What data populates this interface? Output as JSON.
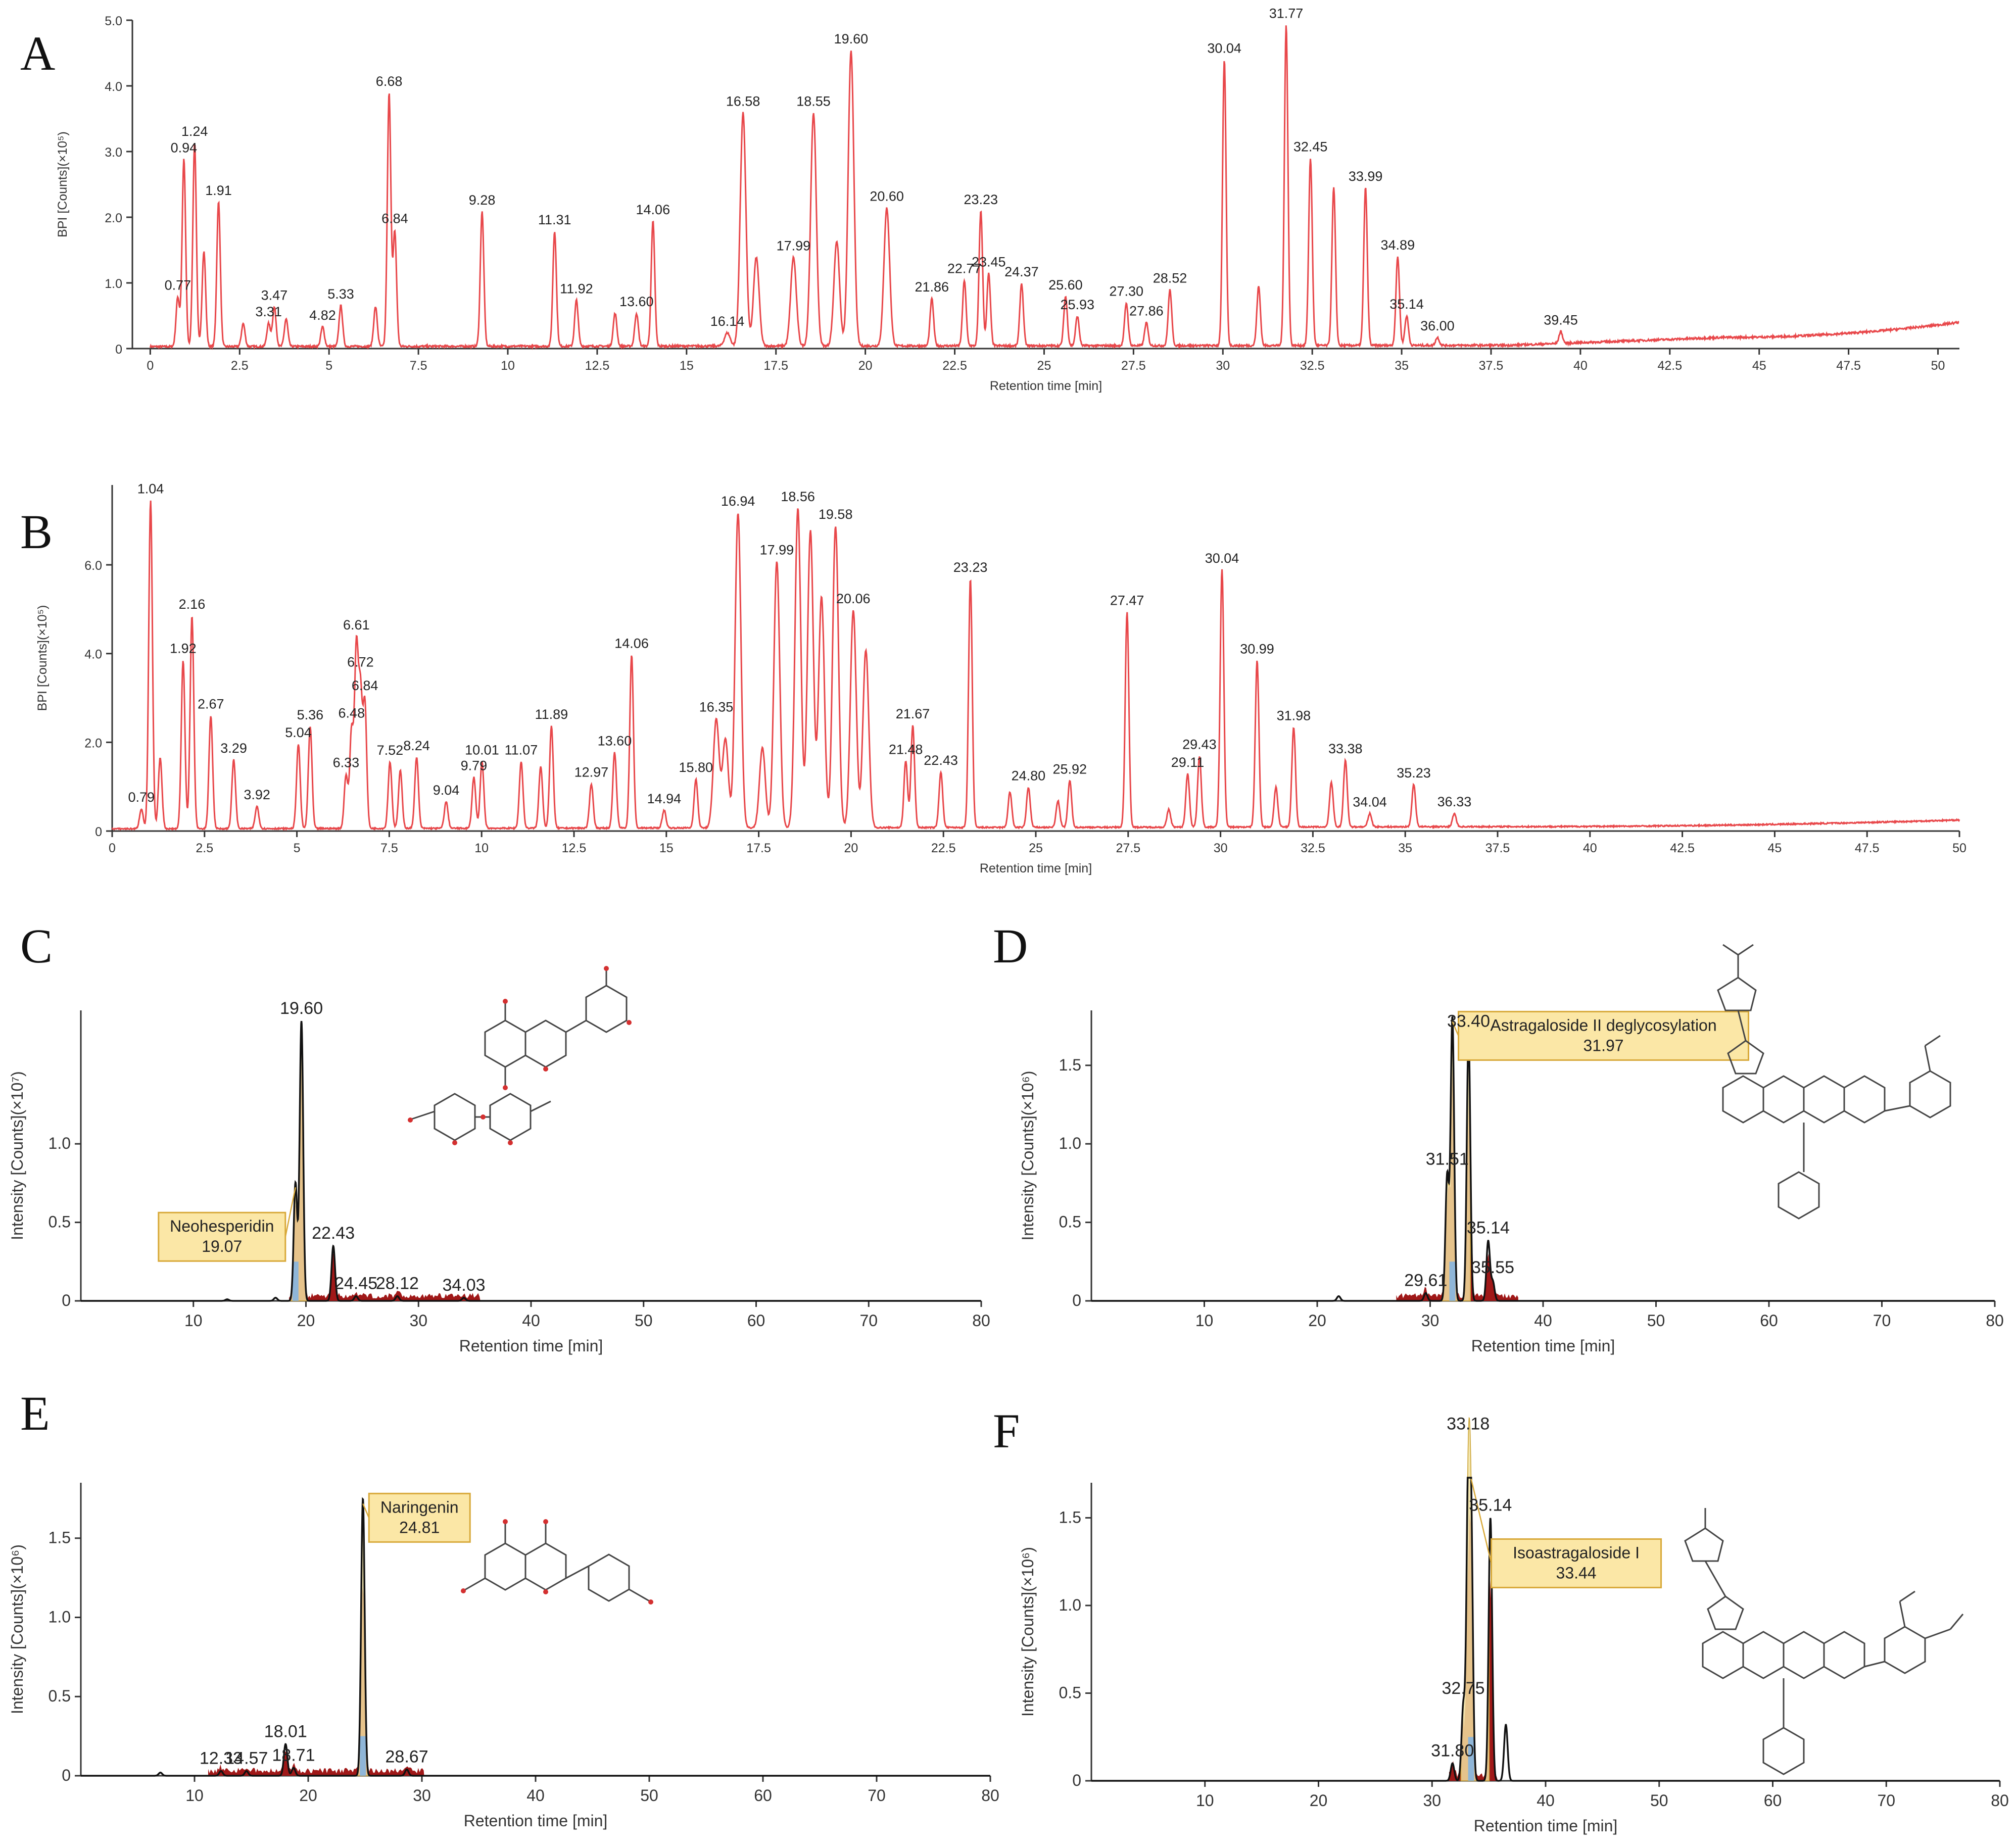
{
  "colors": {
    "trace_red": "#e8474a",
    "trace_black": "#111111",
    "fill_dark_red": "#a01818",
    "fill_yellow": "#f2e2a0",
    "fill_blue": "#8fb6d8",
    "callout_bg": "#fbe7a6",
    "callout_border": "#d8a93a",
    "axis": "#333333",
    "structure": "#444444",
    "oxygen": "#d43030",
    "nitrogen_blue": "#3a7fc0"
  },
  "chart_data": [
    {
      "panel": "A",
      "type": "line",
      "xlabel": "Retention time [min]",
      "ylabel": "BPI [Counts](×10⁵)",
      "xlim": [
        -0.5,
        50.6
      ],
      "ylim": [
        0,
        5.0
      ],
      "xticks": [
        0,
        2.5,
        5,
        7.5,
        10,
        12.5,
        15,
        17.5,
        20,
        22.5,
        25,
        27.5,
        30,
        32.5,
        35,
        37.5,
        40,
        42.5,
        45,
        47.5,
        50
      ],
      "xtick_labels": [
        "0",
        "2.5",
        "5",
        "7.5",
        "10",
        "12.5",
        "15",
        "17.5",
        "20",
        "22.5",
        "25",
        "27.5",
        "30",
        "32.5",
        "35",
        "37.5",
        "40",
        "42.5",
        "45",
        "47.5",
        "50"
      ],
      "yticks": [
        0,
        1.0,
        2.0,
        3.0,
        4.0,
        5.0
      ],
      "ytick_labels": [
        "0",
        "1.0",
        "2.0",
        "3.0",
        "4.0",
        "5.0"
      ],
      "baseline": [
        [
          0,
          0.03
        ],
        [
          38,
          0.05
        ],
        [
          44,
          0.17
        ],
        [
          50.6,
          0.4
        ]
      ],
      "peaks": [
        {
          "rt": 0.77,
          "h": 0.75,
          "label": "0.77"
        },
        {
          "rt": 0.94,
          "h": 2.85,
          "label": "0.94"
        },
        {
          "rt": 1.24,
          "h": 3.1,
          "label": "1.24"
        },
        {
          "rt": 1.5,
          "h": 1.45
        },
        {
          "rt": 1.91,
          "h": 2.2,
          "label": "1.91"
        },
        {
          "rt": 2.6,
          "h": 0.35
        },
        {
          "rt": 3.31,
          "h": 0.35,
          "label": "3.31"
        },
        {
          "rt": 3.47,
          "h": 0.6,
          "label": "3.47"
        },
        {
          "rt": 3.8,
          "h": 0.42
        },
        {
          "rt": 4.82,
          "h": 0.3,
          "label": "4.82"
        },
        {
          "rt": 5.33,
          "h": 0.62,
          "label": "5.33"
        },
        {
          "rt": 6.3,
          "h": 0.6
        },
        {
          "rt": 6.68,
          "h": 3.85,
          "label": "6.68"
        },
        {
          "rt": 6.84,
          "h": 1.75,
          "label": "6.84"
        },
        {
          "rt": 9.28,
          "h": 2.05,
          "label": "9.28"
        },
        {
          "rt": 11.31,
          "h": 1.75,
          "label": "11.31"
        },
        {
          "rt": 11.92,
          "h": 0.7,
          "label": "11.92"
        },
        {
          "rt": 13.0,
          "h": 0.5
        },
        {
          "rt": 13.6,
          "h": 0.5,
          "label": "13.60"
        },
        {
          "rt": 14.06,
          "h": 1.9,
          "label": "14.06"
        },
        {
          "rt": 16.14,
          "h": 0.2,
          "label": "16.14"
        },
        {
          "rt": 16.58,
          "h": 3.55,
          "label": "16.58"
        },
        {
          "rt": 16.95,
          "h": 1.35
        },
        {
          "rt": 17.99,
          "h": 1.35,
          "label": "17.99"
        },
        {
          "rt": 18.55,
          "h": 3.55,
          "label": "18.55"
        },
        {
          "rt": 19.2,
          "h": 1.6
        },
        {
          "rt": 19.6,
          "h": 4.5,
          "label": "19.60"
        },
        {
          "rt": 20.6,
          "h": 2.1,
          "label": "20.60"
        },
        {
          "rt": 21.86,
          "h": 0.72,
          "label": "21.86"
        },
        {
          "rt": 22.77,
          "h": 1.0,
          "label": "22.77"
        },
        {
          "rt": 23.23,
          "h": 2.05,
          "label": "23.23"
        },
        {
          "rt": 23.45,
          "h": 1.1,
          "label": "23.45"
        },
        {
          "rt": 24.37,
          "h": 0.95,
          "label": "24.37"
        },
        {
          "rt": 25.6,
          "h": 0.75,
          "label": "25.60"
        },
        {
          "rt": 25.93,
          "h": 0.45,
          "label": "25.93"
        },
        {
          "rt": 27.3,
          "h": 0.65,
          "label": "27.30"
        },
        {
          "rt": 27.86,
          "h": 0.35,
          "label": "27.86"
        },
        {
          "rt": 28.52,
          "h": 0.85,
          "label": "28.52"
        },
        {
          "rt": 30.04,
          "h": 4.35,
          "label": "30.04"
        },
        {
          "rt": 31.0,
          "h": 0.9
        },
        {
          "rt": 31.77,
          "h": 4.88,
          "label": "31.77"
        },
        {
          "rt": 32.45,
          "h": 2.85,
          "label": "32.45"
        },
        {
          "rt": 33.1,
          "h": 2.4
        },
        {
          "rt": 33.99,
          "h": 2.4,
          "label": "33.99"
        },
        {
          "rt": 34.89,
          "h": 1.35,
          "label": "34.89"
        },
        {
          "rt": 35.14,
          "h": 0.45,
          "label": "35.14"
        },
        {
          "rt": 36.0,
          "h": 0.12,
          "label": "36.00"
        },
        {
          "rt": 39.45,
          "h": 0.18,
          "label": "39.45"
        }
      ]
    },
    {
      "panel": "B",
      "type": "line",
      "xlabel": "Retention time [min]",
      "ylabel": "BPI [Counts](×10⁵)",
      "xlim": [
        0,
        50
      ],
      "ylim": [
        0,
        7.8
      ],
      "xticks": [
        0,
        2.5,
        5,
        7.5,
        10,
        12.5,
        15,
        17.5,
        20,
        22.5,
        25,
        27.5,
        30,
        32.5,
        35,
        37.5,
        40,
        42.5,
        45,
        47.5,
        50
      ],
      "xtick_labels": [
        "0",
        "2.5",
        "5",
        "7.5",
        "10",
        "12.5",
        "15",
        "17.5",
        "20",
        "22.5",
        "25",
        "27.5",
        "30",
        "32.5",
        "35",
        "37.5",
        "40",
        "42.5",
        "45",
        "47.5",
        "50"
      ],
      "yticks": [
        0,
        2.0,
        4.0,
        6.0
      ],
      "ytick_labels": [
        "0",
        "2.0",
        "4.0",
        "6.0"
      ],
      "baseline": [
        [
          0,
          0.05
        ],
        [
          38,
          0.1
        ],
        [
          50,
          0.25
        ]
      ],
      "peaks": [
        {
          "rt": 0.79,
          "h": 0.45,
          "label": "0.79"
        },
        {
          "rt": 1.04,
          "h": 7.4,
          "label": "1.04"
        },
        {
          "rt": 1.3,
          "h": 1.6
        },
        {
          "rt": 1.92,
          "h": 3.8,
          "label": "1.92"
        },
        {
          "rt": 2.16,
          "h": 4.8,
          "label": "2.16"
        },
        {
          "rt": 2.67,
          "h": 2.55,
          "label": "2.67"
        },
        {
          "rt": 3.29,
          "h": 1.55,
          "label": "3.29"
        },
        {
          "rt": 3.92,
          "h": 0.5,
          "label": "3.92"
        },
        {
          "rt": 5.04,
          "h": 1.9,
          "label": "5.04"
        },
        {
          "rt": 5.36,
          "h": 2.3,
          "label": "5.36"
        },
        {
          "rt": 6.33,
          "h": 1.2,
          "label": "6.33"
        },
        {
          "rt": 6.48,
          "h": 2.2,
          "label": "6.48"
        },
        {
          "rt": 6.61,
          "h": 4.0,
          "label": "6.61"
        },
        {
          "rt": 6.72,
          "h": 3.0,
          "label": "6.72"
        },
        {
          "rt": 6.84,
          "h": 2.8,
          "label": "6.84"
        },
        {
          "rt": 7.52,
          "h": 1.5,
          "label": "7.52"
        },
        {
          "rt": 7.8,
          "h": 1.3
        },
        {
          "rt": 8.24,
          "h": 1.6,
          "label": "8.24"
        },
        {
          "rt": 9.04,
          "h": 0.6,
          "label": "9.04"
        },
        {
          "rt": 9.79,
          "h": 1.15,
          "label": "9.79"
        },
        {
          "rt": 10.01,
          "h": 1.5,
          "label": "10.01"
        },
        {
          "rt": 11.07,
          "h": 1.5,
          "label": "11.07"
        },
        {
          "rt": 11.6,
          "h": 1.4
        },
        {
          "rt": 11.89,
          "h": 2.3,
          "label": "11.89"
        },
        {
          "rt": 12.97,
          "h": 1.0,
          "label": "12.97"
        },
        {
          "rt": 13.6,
          "h": 1.7,
          "label": "13.60"
        },
        {
          "rt": 14.06,
          "h": 3.9,
          "label": "14.06"
        },
        {
          "rt": 14.94,
          "h": 0.4,
          "label": "14.94"
        },
        {
          "rt": 15.8,
          "h": 1.1,
          "label": "15.80"
        },
        {
          "rt": 16.35,
          "h": 2.45,
          "label": "16.35"
        },
        {
          "rt": 16.6,
          "h": 2.0
        },
        {
          "rt": 16.94,
          "h": 7.1,
          "label": "16.94"
        },
        {
          "rt": 17.6,
          "h": 1.8
        },
        {
          "rt": 17.99,
          "h": 6.0,
          "label": "17.99"
        },
        {
          "rt": 18.56,
          "h": 7.2,
          "label": "18.56"
        },
        {
          "rt": 18.9,
          "h": 6.7
        },
        {
          "rt": 19.2,
          "h": 5.2
        },
        {
          "rt": 19.58,
          "h": 6.8,
          "label": "19.58"
        },
        {
          "rt": 20.06,
          "h": 4.9,
          "label": "20.06"
        },
        {
          "rt": 20.4,
          "h": 4.0
        },
        {
          "rt": 21.48,
          "h": 1.5,
          "label": "21.48"
        },
        {
          "rt": 21.67,
          "h": 2.3,
          "label": "21.67"
        },
        {
          "rt": 22.43,
          "h": 1.25,
          "label": "22.43"
        },
        {
          "rt": 23.23,
          "h": 5.6,
          "label": "23.23"
        },
        {
          "rt": 24.3,
          "h": 0.8
        },
        {
          "rt": 24.8,
          "h": 0.9,
          "label": "24.80"
        },
        {
          "rt": 25.6,
          "h": 0.6
        },
        {
          "rt": 25.92,
          "h": 1.05,
          "label": "25.92"
        },
        {
          "rt": 27.47,
          "h": 4.85,
          "label": "27.47"
        },
        {
          "rt": 28.6,
          "h": 0.4
        },
        {
          "rt": 29.11,
          "h": 1.2,
          "label": "29.11"
        },
        {
          "rt": 29.43,
          "h": 1.6,
          "label": "29.43"
        },
        {
          "rt": 30.04,
          "h": 5.8,
          "label": "30.04"
        },
        {
          "rt": 30.99,
          "h": 3.75,
          "label": "30.99"
        },
        {
          "rt": 31.5,
          "h": 0.9
        },
        {
          "rt": 31.98,
          "h": 2.25,
          "label": "31.98"
        },
        {
          "rt": 33.0,
          "h": 1.0
        },
        {
          "rt": 33.38,
          "h": 1.5,
          "label": "33.38"
        },
        {
          "rt": 34.04,
          "h": 0.3,
          "label": "34.04"
        },
        {
          "rt": 35.23,
          "h": 0.95,
          "label": "35.23"
        },
        {
          "rt": 36.33,
          "h": 0.3,
          "label": "36.33"
        }
      ]
    },
    {
      "panel": "C",
      "type": "line",
      "xlabel": "Retention time [min]",
      "ylabel": "Intensity [Counts](×10⁷)",
      "xlim": [
        0,
        80
      ],
      "ylim": [
        0,
        1.85
      ],
      "xticks": [
        10,
        20,
        30,
        40,
        50,
        60,
        70,
        80
      ],
      "xtick_labels": [
        "10",
        "20",
        "30",
        "40",
        "50",
        "60",
        "70",
        "80"
      ],
      "yticks": [
        0,
        0.5,
        1.0
      ],
      "ytick_labels": [
        "0",
        "0.5",
        "1.0"
      ],
      "peaks": [
        {
          "rt": 13.0,
          "h": 0.01
        },
        {
          "rt": 17.3,
          "h": 0.02
        },
        {
          "rt": 19.07,
          "h": 0.75,
          "label": "Neohesperidin\n19.07",
          "callout": true,
          "fill": "yellow"
        },
        {
          "rt": 19.6,
          "h": 1.78,
          "label": "19.60",
          "fill": "yellow"
        },
        {
          "rt": 22.43,
          "h": 0.35,
          "label": "22.43"
        },
        {
          "rt": 24.45,
          "h": 0.03,
          "label": "24.45"
        },
        {
          "rt": 28.12,
          "h": 0.03,
          "label": "28.12"
        },
        {
          "rt": 34.03,
          "h": 0.02,
          "label": "34.03"
        }
      ],
      "noise_range": [
        18.5,
        35.5
      ]
    },
    {
      "panel": "D",
      "type": "line",
      "xlabel": "Retention time [min]",
      "ylabel": "Intensity [Counts](×10⁶)",
      "xlim": [
        0,
        80
      ],
      "ylim": [
        0,
        1.85
      ],
      "xticks": [
        10,
        20,
        30,
        40,
        50,
        60,
        70,
        80
      ],
      "xtick_labels": [
        "10",
        "20",
        "30",
        "40",
        "50",
        "60",
        "70",
        "80"
      ],
      "yticks": [
        0,
        0.5,
        1.0,
        1.5
      ],
      "ytick_labels": [
        "0",
        "0.5",
        "1.0",
        "1.5"
      ],
      "peaks": [
        {
          "rt": 21.9,
          "h": 0.03
        },
        {
          "rt": 29.61,
          "h": 0.05,
          "label": "29.61"
        },
        {
          "rt": 31.51,
          "h": 0.8,
          "label": "31.51"
        },
        {
          "rt": 31.97,
          "h": 1.8,
          "label": "Astragaloside II deglycosylation\n31.97",
          "callout": true,
          "fill": "yellow"
        },
        {
          "rt": 33.4,
          "h": 1.7,
          "label": "33.40"
        },
        {
          "rt": 35.14,
          "h": 0.38,
          "label": "35.14"
        },
        {
          "rt": 35.55,
          "h": 0.12,
          "label": "35.55"
        }
      ],
      "noise_range": [
        27.0,
        37.8
      ]
    },
    {
      "panel": "E",
      "type": "line",
      "xlabel": "Retention time [min]",
      "ylabel": "Intensity [Counts](×10⁶)",
      "xlim": [
        0,
        80
      ],
      "ylim": [
        0,
        1.85
      ],
      "xticks": [
        10,
        20,
        30,
        40,
        50,
        60,
        70,
        80
      ],
      "xtick_labels": [
        "10",
        "20",
        "30",
        "40",
        "50",
        "60",
        "70",
        "80"
      ],
      "yticks": [
        0,
        0.5,
        1.0,
        1.5
      ],
      "ytick_labels": [
        "0",
        "0.5",
        "1.0",
        "1.5"
      ],
      "peaks": [
        {
          "rt": 7.0,
          "h": 0.02
        },
        {
          "rt": 12.33,
          "h": 0.03,
          "label": "12.33"
        },
        {
          "rt": 14.57,
          "h": 0.03,
          "label": "14.57"
        },
        {
          "rt": 18.01,
          "h": 0.2,
          "label": "18.01"
        },
        {
          "rt": 18.71,
          "h": 0.05,
          "label": "18.71"
        },
        {
          "rt": 24.81,
          "h": 1.75,
          "label": "Naringenin\n24.81",
          "callout": true,
          "fill": "yellow"
        },
        {
          "rt": 28.67,
          "h": 0.04,
          "label": "28.67"
        }
      ],
      "noise_range": [
        11.2,
        30.2
      ]
    },
    {
      "panel": "F",
      "type": "line",
      "xlabel": "Retention time [min]",
      "ylabel": "Intensity [Counts](×10⁶)",
      "xlim": [
        0,
        80
      ],
      "ylim": [
        0,
        1.7
      ],
      "xticks": [
        10,
        20,
        30,
        40,
        50,
        60,
        70,
        80
      ],
      "xtick_labels": [
        "10",
        "20",
        "30",
        "40",
        "50",
        "60",
        "70",
        "80"
      ],
      "yticks": [
        0,
        0.5,
        1.0,
        1.5
      ],
      "ytick_labels": [
        "0",
        "0.5",
        "1.0",
        "1.5"
      ],
      "peaks": [
        {
          "rt": 31.8,
          "h": 0.1,
          "label": "31.80"
        },
        {
          "rt": 32.75,
          "h": 0.42,
          "label": "32.75"
        },
        {
          "rt": 33.18,
          "h": 1.62,
          "label": "33.18"
        },
        {
          "rt": 33.44,
          "h": 1.35,
          "label": "Isoastragaloside I\n33.44",
          "callout": true,
          "fill": "yellow"
        },
        {
          "rt": 35.14,
          "h": 1.5,
          "label": "35.14"
        },
        {
          "rt": 36.5,
          "h": 0.32
        }
      ],
      "noise_range": [
        31.5,
        35.8
      ]
    }
  ]
}
